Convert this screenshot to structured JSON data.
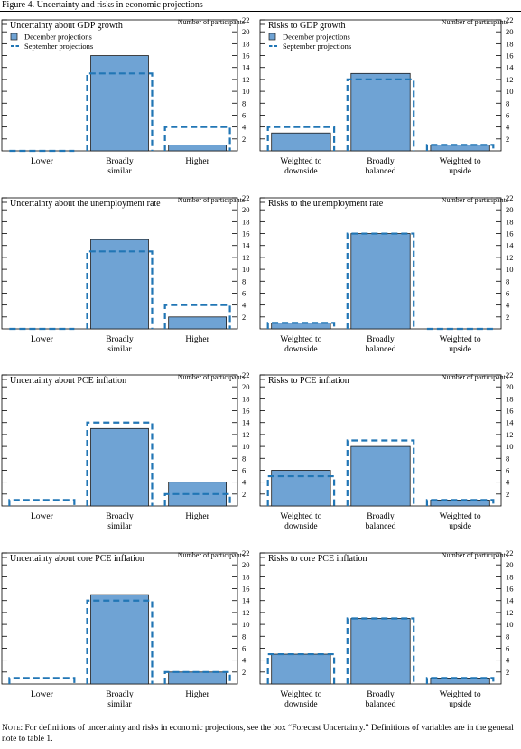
{
  "figure_title": "Figure 4. Uncertainty and risks in economic projections",
  "note": {
    "label": "Note",
    "text": ": For definitions of uncertainty and risks in economic projections, see the box “Forecast Uncertainty.” Definitions of variables are in the general note to table 1."
  },
  "colors": {
    "bar_fill": "#6fa3d4",
    "bar_stroke": "#1a1a1a",
    "dash": "#2176b5"
  },
  "chart_data": [
    {
      "type": "bar",
      "title": "Uncertainty about GDP growth",
      "ylabel": "Number of participants",
      "categories": [
        [
          "Lower"
        ],
        [
          "Broadly",
          "similar"
        ],
        [
          "Higher"
        ]
      ],
      "ylim": [
        0,
        22
      ],
      "yticks": [
        2,
        4,
        6,
        8,
        10,
        12,
        14,
        16,
        18,
        20,
        22
      ],
      "legend": [
        "December projections",
        "September projections"
      ],
      "series": [
        {
          "name": "December projections",
          "values": [
            0,
            16,
            1
          ]
        },
        {
          "name": "September projections",
          "values": [
            0,
            13,
            4
          ]
        }
      ]
    },
    {
      "type": "bar",
      "title": "Risks to GDP growth",
      "ylabel": "Number of participants",
      "categories": [
        [
          "Weighted to",
          "downside"
        ],
        [
          "Broadly",
          "balanced"
        ],
        [
          "Weighted to",
          "upside"
        ]
      ],
      "ylim": [
        0,
        22
      ],
      "yticks": [
        2,
        4,
        6,
        8,
        10,
        12,
        14,
        16,
        18,
        20,
        22
      ],
      "legend": [
        "December projections",
        "September projections"
      ],
      "series": [
        {
          "name": "December projections",
          "values": [
            3,
            13,
            1
          ]
        },
        {
          "name": "September projections",
          "values": [
            4,
            12,
            1
          ]
        }
      ]
    },
    {
      "type": "bar",
      "title": "Uncertainty about the unemployment rate",
      "ylabel": "Number of participants",
      "categories": [
        [
          "Lower"
        ],
        [
          "Broadly",
          "similar"
        ],
        [
          "Higher"
        ]
      ],
      "ylim": [
        0,
        22
      ],
      "yticks": [
        2,
        4,
        6,
        8,
        10,
        12,
        14,
        16,
        18,
        20,
        22
      ],
      "series": [
        {
          "values": [
            0,
            15,
            2
          ]
        },
        {
          "values": [
            0,
            13,
            4
          ]
        }
      ]
    },
    {
      "type": "bar",
      "title": "Risks to the unemployment rate",
      "ylabel": "Number of participants",
      "categories": [
        [
          "Weighted to",
          "downside"
        ],
        [
          "Broadly",
          "balanced"
        ],
        [
          "Weighted to",
          "upside"
        ]
      ],
      "ylim": [
        0,
        22
      ],
      "yticks": [
        2,
        4,
        6,
        8,
        10,
        12,
        14,
        16,
        18,
        20,
        22
      ],
      "series": [
        {
          "values": [
            1,
            16,
            0
          ]
        },
        {
          "values": [
            1,
            16,
            0
          ]
        }
      ]
    },
    {
      "type": "bar",
      "title": "Uncertainty about PCE inflation",
      "ylabel": "Number of participants",
      "categories": [
        [
          "Lower"
        ],
        [
          "Broadly",
          "similar"
        ],
        [
          "Higher"
        ]
      ],
      "ylim": [
        0,
        22
      ],
      "yticks": [
        2,
        4,
        6,
        8,
        10,
        12,
        14,
        16,
        18,
        20,
        22
      ],
      "series": [
        {
          "values": [
            0,
            13,
            4
          ]
        },
        {
          "values": [
            1,
            14,
            2
          ]
        }
      ]
    },
    {
      "type": "bar",
      "title": "Risks to PCE inflation",
      "ylabel": "Number of participants",
      "categories": [
        [
          "Weighted to",
          "downside"
        ],
        [
          "Broadly",
          "balanced"
        ],
        [
          "Weighted to",
          "upside"
        ]
      ],
      "ylim": [
        0,
        22
      ],
      "yticks": [
        2,
        4,
        6,
        8,
        10,
        12,
        14,
        16,
        18,
        20,
        22
      ],
      "series": [
        {
          "values": [
            6,
            10,
            1
          ]
        },
        {
          "values": [
            5,
            11,
            1
          ]
        }
      ]
    },
    {
      "type": "bar",
      "title": "Uncertainty about core PCE inflation",
      "ylabel": "Number of participants",
      "categories": [
        [
          "Lower"
        ],
        [
          "Broadly",
          "similar"
        ],
        [
          "Higher"
        ]
      ],
      "ylim": [
        0,
        22
      ],
      "yticks": [
        2,
        4,
        6,
        8,
        10,
        12,
        14,
        16,
        18,
        20,
        22
      ],
      "series": [
        {
          "values": [
            0,
            15,
            2
          ]
        },
        {
          "values": [
            1,
            14,
            2
          ]
        }
      ]
    },
    {
      "type": "bar",
      "title": "Risks to core PCE inflation",
      "ylabel": "Number of participants",
      "categories": [
        [
          "Weighted to",
          "downside"
        ],
        [
          "Broadly",
          "balanced"
        ],
        [
          "Weighted to",
          "upside"
        ]
      ],
      "ylim": [
        0,
        22
      ],
      "yticks": [
        2,
        4,
        6,
        8,
        10,
        12,
        14,
        16,
        18,
        20,
        22
      ],
      "series": [
        {
          "values": [
            5,
            11,
            1
          ]
        },
        {
          "values": [
            5,
            11,
            1
          ]
        }
      ]
    }
  ]
}
